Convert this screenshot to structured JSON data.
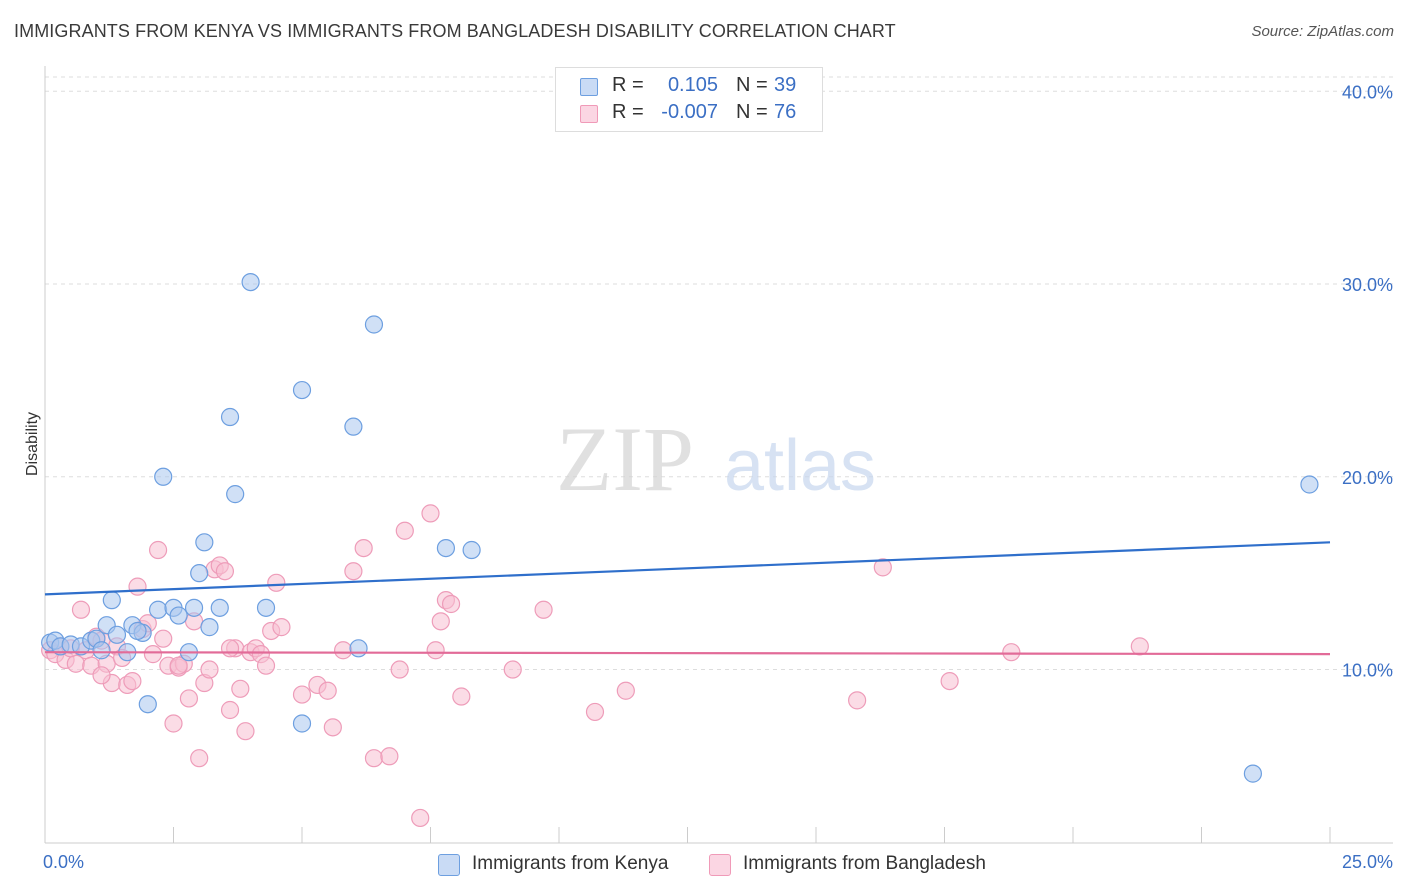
{
  "header": {
    "title": "IMMIGRANTS FROM KENYA VS IMMIGRANTS FROM BANGLADESH DISABILITY CORRELATION CHART",
    "source": "Source: ZipAtlas.com"
  },
  "watermark": {
    "zip": "ZIP",
    "atlas": "atlas"
  },
  "legend_top": {
    "rows": [
      {
        "r_label": "R =",
        "r_value": "0.105",
        "n_label": "N =",
        "n_value": "39",
        "color": "#6d9fe0"
      },
      {
        "r_label": "R =",
        "r_value": "-0.007",
        "n_label": "N =",
        "n_value": "76",
        "color": "#f09ab8"
      }
    ]
  },
  "legend_bottom": {
    "items": [
      {
        "label": "Immigrants from Kenya",
        "color": "#6d9fe0"
      },
      {
        "label": "Immigrants from Bangladesh",
        "color": "#f09ab8"
      }
    ]
  },
  "colors": {
    "kenya_fill": "#aac7ef",
    "kenya_stroke": "#6d9fe0",
    "kenya_line": "#2f6fcb",
    "bangladesh_fill": "#f7bfd2",
    "bangladesh_stroke": "#ee9cb9",
    "bangladesh_line": "#e26b98",
    "axis_text": "#3b6fc4",
    "grid": "#dddddd"
  },
  "chart_data": {
    "type": "scatter",
    "title": "IMMIGRANTS FROM KENYA VS IMMIGRANTS FROM BANGLADESH DISABILITY CORRELATION CHART",
    "xlabel": "",
    "ylabel": "Disability",
    "xlim": [
      0,
      25
    ],
    "ylim": [
      1,
      41
    ],
    "x_tick_labels": [
      "0.0%",
      "25.0%"
    ],
    "y_ticks": [
      10,
      20,
      30,
      40
    ],
    "y_tick_labels": [
      "10.0%",
      "20.0%",
      "30.0%",
      "40.0%"
    ],
    "grid": "horizontal dashed",
    "legend": "top-center",
    "series": [
      {
        "name": "Immigrants from Kenya",
        "r": 0.105,
        "n": 39,
        "trend": {
          "x": [
            0,
            25
          ],
          "y": [
            13.9,
            16.6
          ]
        },
        "points": [
          [
            0.1,
            11.4
          ],
          [
            0.2,
            11.5
          ],
          [
            0.3,
            11.2
          ],
          [
            0.5,
            11.3
          ],
          [
            0.7,
            11.2
          ],
          [
            0.9,
            11.5
          ],
          [
            1.0,
            11.6
          ],
          [
            1.1,
            11.0
          ],
          [
            1.2,
            12.3
          ],
          [
            1.4,
            11.8
          ],
          [
            1.6,
            10.9
          ],
          [
            1.7,
            12.3
          ],
          [
            1.9,
            11.9
          ],
          [
            1.3,
            13.6
          ],
          [
            2.2,
            13.1
          ],
          [
            2.5,
            13.2
          ],
          [
            2.6,
            12.8
          ],
          [
            2.8,
            10.9
          ],
          [
            2.9,
            13.2
          ],
          [
            3.1,
            16.6
          ],
          [
            3.0,
            15.0
          ],
          [
            3.2,
            12.2
          ],
          [
            3.4,
            13.2
          ],
          [
            4.3,
            13.2
          ],
          [
            5.0,
            7.2
          ],
          [
            2.0,
            8.2
          ],
          [
            2.3,
            20.0
          ],
          [
            3.6,
            23.1
          ],
          [
            3.7,
            19.1
          ],
          [
            4.0,
            30.1
          ],
          [
            5.0,
            24.5
          ],
          [
            6.0,
            22.6
          ],
          [
            6.1,
            11.1
          ],
          [
            6.4,
            27.9
          ],
          [
            7.8,
            16.3
          ],
          [
            8.3,
            16.2
          ],
          [
            24.6,
            19.6
          ],
          [
            23.5,
            4.6
          ],
          [
            1.8,
            12.0
          ]
        ]
      },
      {
        "name": "Immigrants from Bangladesh",
        "r": -0.007,
        "n": 76,
        "trend": {
          "x": [
            0,
            25
          ],
          "y": [
            10.9,
            10.8
          ]
        },
        "points": [
          [
            0.1,
            11.0
          ],
          [
            0.2,
            10.8
          ],
          [
            0.3,
            11.2
          ],
          [
            0.4,
            10.5
          ],
          [
            0.6,
            10.3
          ],
          [
            0.8,
            11.0
          ],
          [
            0.9,
            10.2
          ],
          [
            1.0,
            11.7
          ],
          [
            1.1,
            11.5
          ],
          [
            1.2,
            10.3
          ],
          [
            1.3,
            9.3
          ],
          [
            1.4,
            11.2
          ],
          [
            1.5,
            10.6
          ],
          [
            1.6,
            9.2
          ],
          [
            0.7,
            13.1
          ],
          [
            1.1,
            9.7
          ],
          [
            1.8,
            14.3
          ],
          [
            1.9,
            12.1
          ],
          [
            2.0,
            12.4
          ],
          [
            2.1,
            10.8
          ],
          [
            2.2,
            16.2
          ],
          [
            2.3,
            11.6
          ],
          [
            2.4,
            10.2
          ],
          [
            2.5,
            7.2
          ],
          [
            2.6,
            10.1
          ],
          [
            2.7,
            10.3
          ],
          [
            2.8,
            8.5
          ],
          [
            2.9,
            12.5
          ],
          [
            3.0,
            5.4
          ],
          [
            3.1,
            9.3
          ],
          [
            3.2,
            10.0
          ],
          [
            3.3,
            15.2
          ],
          [
            3.4,
            15.4
          ],
          [
            3.5,
            15.1
          ],
          [
            3.6,
            7.9
          ],
          [
            3.7,
            11.1
          ],
          [
            3.8,
            9.0
          ],
          [
            3.9,
            6.8
          ],
          [
            4.0,
            10.9
          ],
          [
            4.1,
            11.1
          ],
          [
            4.2,
            10.8
          ],
          [
            4.3,
            10.2
          ],
          [
            4.4,
            12.0
          ],
          [
            4.5,
            14.5
          ],
          [
            4.6,
            12.2
          ],
          [
            5.0,
            8.7
          ],
          [
            5.3,
            9.2
          ],
          [
            5.5,
            8.9
          ],
          [
            5.6,
            7.0
          ],
          [
            5.8,
            11.0
          ],
          [
            6.0,
            15.1
          ],
          [
            6.2,
            16.3
          ],
          [
            6.4,
            5.4
          ],
          [
            6.7,
            5.5
          ],
          [
            6.9,
            10.0
          ],
          [
            7.0,
            17.2
          ],
          [
            7.3,
            2.3
          ],
          [
            7.5,
            18.1
          ],
          [
            7.6,
            11.0
          ],
          [
            7.7,
            12.5
          ],
          [
            7.8,
            13.6
          ],
          [
            7.9,
            13.4
          ],
          [
            8.1,
            8.6
          ],
          [
            9.1,
            10.0
          ],
          [
            9.7,
            13.1
          ],
          [
            10.7,
            7.8
          ],
          [
            11.3,
            8.9
          ],
          [
            15.8,
            8.4
          ],
          [
            16.3,
            15.3
          ],
          [
            17.6,
            9.4
          ],
          [
            18.8,
            10.9
          ],
          [
            21.3,
            11.2
          ],
          [
            0.5,
            11.1
          ],
          [
            2.6,
            10.2
          ],
          [
            3.6,
            11.1
          ],
          [
            1.7,
            9.4
          ]
        ]
      }
    ]
  }
}
